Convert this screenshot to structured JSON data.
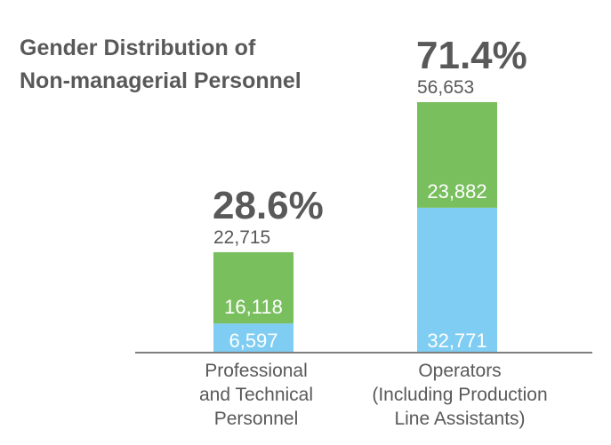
{
  "chart_data": {
    "type": "bar",
    "stacked": true,
    "title": [
      "Gender Distribution of",
      "Non-managerial Personnel"
    ],
    "categories": [
      [
        "Professional",
        "and Technical",
        "Personnel"
      ],
      [
        "Operators",
        "(Including Production",
        "Line Assistants)"
      ]
    ],
    "series": [
      {
        "values": [
          6597,
          32771
        ],
        "labels": [
          "6,597",
          "32,771"
        ],
        "color": "#7fcdf2"
      },
      {
        "values": [
          16118,
          23882
        ],
        "labels": [
          "16,118",
          "23,882"
        ],
        "color": "#79bf5e"
      }
    ],
    "totals": [
      "22,715",
      "56,653"
    ],
    "percentages": [
      "28.6%",
      "71.4%"
    ],
    "ylim": [
      0,
      56653
    ],
    "grid": false,
    "legend": "none"
  },
  "colors": {
    "text": "#595959",
    "axis": "#7f7f7f"
  }
}
